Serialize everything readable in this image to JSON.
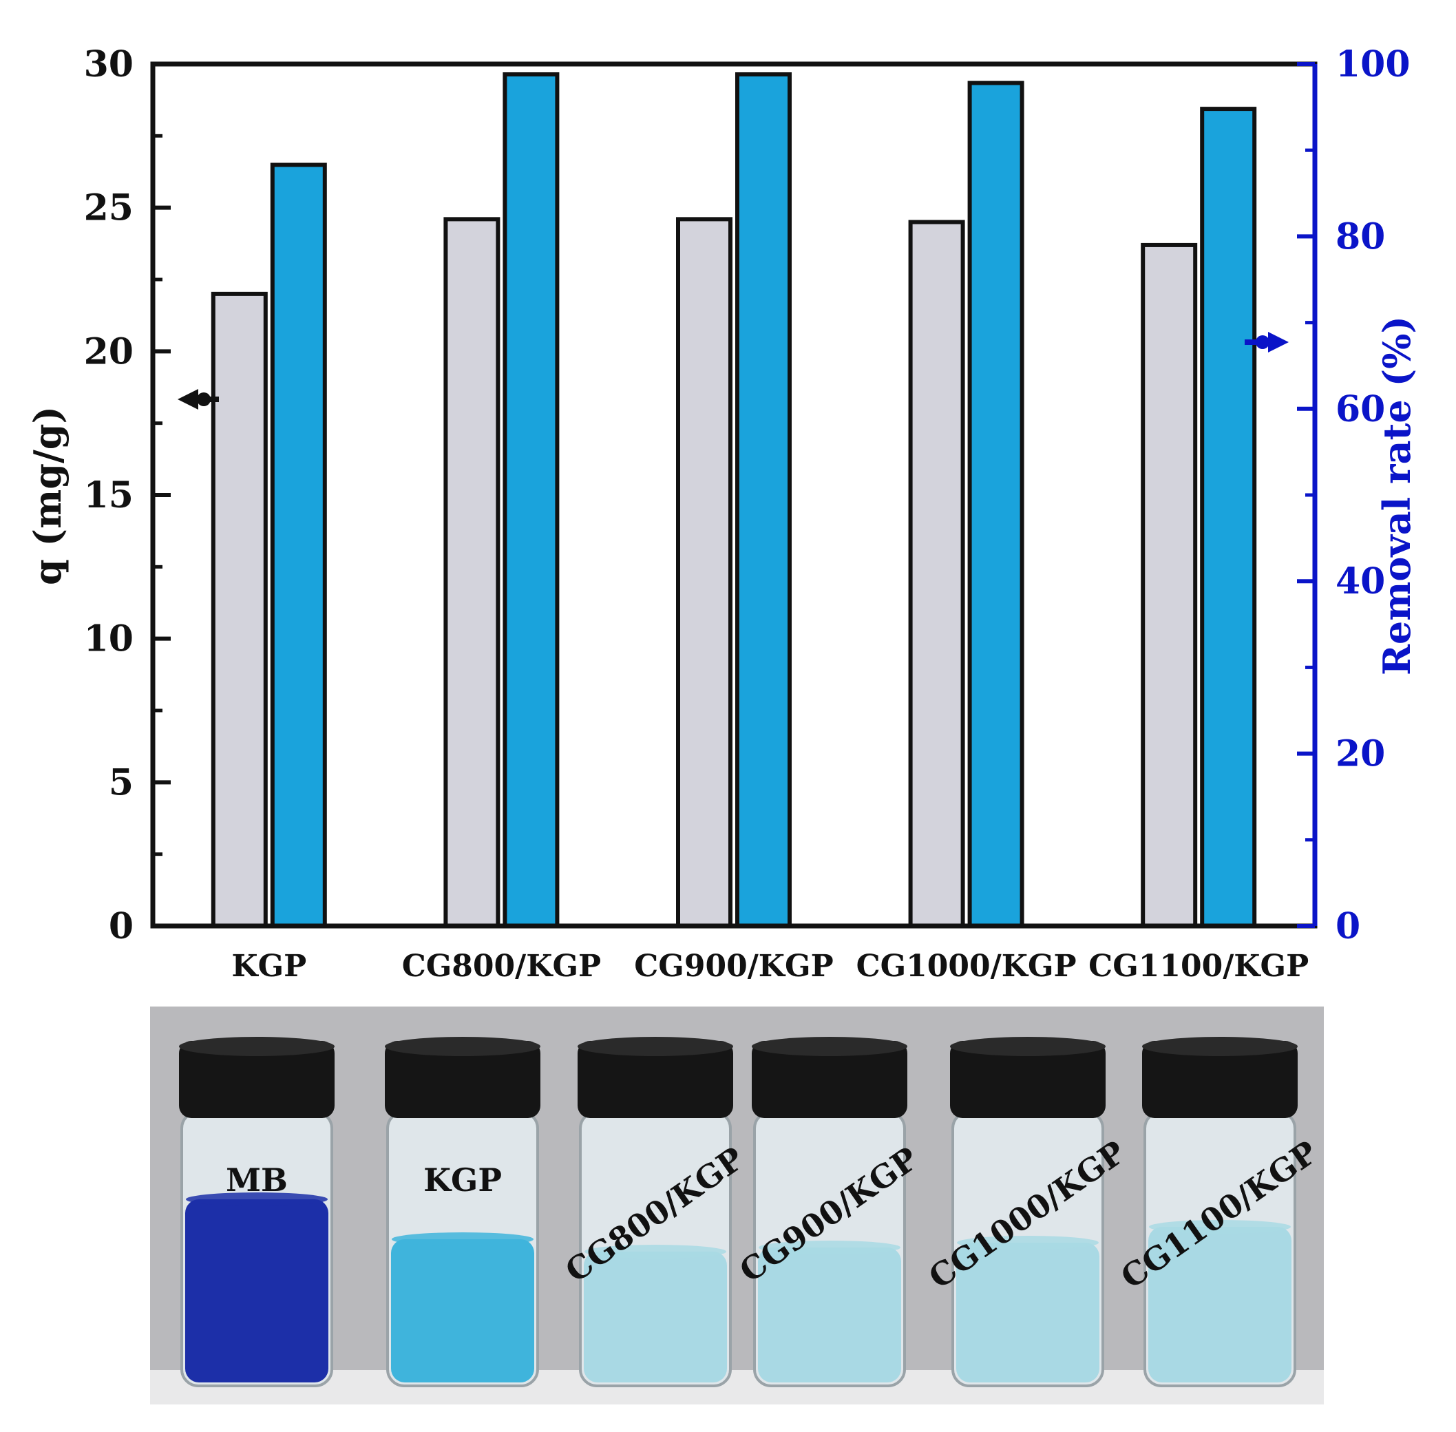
{
  "colors": {
    "q_bar": "#d3d3dc",
    "removal_bar": "#1aa3dc",
    "left_axis": "#111111",
    "right_axis": "#0a14c8",
    "photo_background": "#b9b9bc",
    "mb_solution": "#1c2fa8",
    "kgp_solution": "#3fb4dc",
    "treated_solution": "#a9d9e4"
  },
  "chart_data": {
    "type": "bar",
    "categories": [
      "KGP",
      "CG800/KGP",
      "CG900/KGP",
      "CG1000/KGP",
      "CG1100/KGP"
    ],
    "series": [
      {
        "values": [
          22.0,
          24.6,
          24.6,
          24.5,
          23.7
        ],
        "axis": "left"
      },
      {
        "values": [
          88.3,
          98.8,
          98.8,
          97.8,
          94.8
        ],
        "axis": "right"
      }
    ],
    "ylabel": "q (mg/g)",
    "y2label": "Removal rate (%)",
    "ylim": [
      0,
      30
    ],
    "y2lim": [
      0,
      100
    ],
    "yticks": [
      "0",
      "5",
      "10",
      "15",
      "20",
      "25",
      "30"
    ],
    "y2ticks": [
      "0",
      "20",
      "40",
      "60",
      "80",
      "100"
    ],
    "grid": false,
    "legend": "none",
    "series_indicators": {
      "left_arrow_points_to": "left axis",
      "right_arrow_points_to": "right axis"
    }
  },
  "photo": {
    "vials": [
      {
        "label": "MB",
        "solution": "mb_solution"
      },
      {
        "label": "KGP",
        "solution": "kgp_solution"
      },
      {
        "label": "CG800/KGP",
        "solution": "treated_solution"
      },
      {
        "label": "CG900/KGP",
        "solution": "treated_solution"
      },
      {
        "label": "CG1000/KGP",
        "solution": "treated_solution"
      },
      {
        "label": "CG1100/KGP",
        "solution": "treated_solution"
      }
    ]
  }
}
